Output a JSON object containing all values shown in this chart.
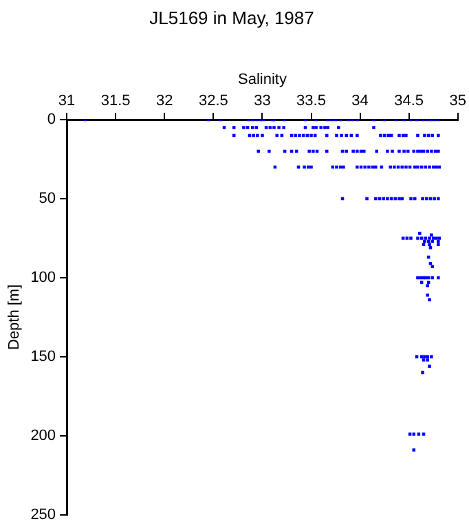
{
  "chart_data": {
    "type": "scatter",
    "title": "JL5169 in May, 1987",
    "xlabel": "Salinity",
    "ylabel": "Depth [m]",
    "xlim": [
      31,
      35
    ],
    "xticks": [
      31,
      31.5,
      32,
      32.5,
      33,
      33.5,
      34,
      34.5,
      35
    ],
    "ylim": [
      250,
      0
    ],
    "yticks": [
      0,
      50,
      100,
      150,
      200,
      250
    ],
    "grid": false,
    "legend": false,
    "marker": "square",
    "series": [
      {
        "color": "#0000ff",
        "x": [
          31.19,
          32.45,
          32.57,
          32.86,
          32.9,
          32.94,
          32.98,
          33.01,
          33.1,
          33.12,
          33.22,
          33.44,
          33.55,
          33.67,
          33.71,
          33.75,
          33.8,
          33.88,
          33.92,
          33.97,
          34.14,
          34.25,
          34.37,
          34.45,
          34.52,
          34.58,
          34.64,
          34.68,
          34.72,
          34.76,
          34.8,
          32.61,
          32.71,
          32.81,
          32.85,
          32.9,
          32.94,
          33.04,
          33.08,
          33.12,
          33.17,
          33.22,
          33.44,
          33.52,
          33.55,
          33.6,
          33.64,
          33.67,
          33.78,
          34.14,
          32.71,
          32.87,
          32.91,
          32.95,
          33.0,
          33.15,
          33.2,
          33.3,
          33.34,
          33.38,
          33.42,
          33.46,
          33.5,
          33.54,
          33.66,
          33.76,
          33.81,
          33.86,
          33.91,
          33.97,
          34.21,
          34.25,
          34.29,
          34.32,
          34.4,
          34.44,
          34.47,
          34.59,
          34.66,
          34.7,
          34.74,
          34.8,
          32.96,
          33.07,
          33.23,
          33.3,
          33.35,
          33.48,
          33.52,
          33.56,
          33.66,
          33.82,
          33.86,
          33.93,
          33.97,
          34.01,
          34.04,
          34.17,
          34.28,
          34.33,
          34.4,
          34.45,
          34.49,
          34.55,
          34.59,
          34.62,
          34.65,
          34.69,
          34.73,
          34.77,
          34.8,
          33.13,
          33.37,
          33.43,
          33.47,
          33.5,
          33.72,
          33.76,
          33.8,
          33.83,
          33.97,
          34.01,
          34.05,
          34.09,
          34.13,
          34.16,
          34.22,
          34.31,
          34.35,
          34.39,
          34.43,
          34.47,
          34.51,
          34.56,
          34.59,
          34.63,
          34.67,
          34.71,
          34.75,
          34.78,
          34.81,
          33.82,
          34.07,
          34.16,
          34.2,
          34.24,
          34.28,
          34.32,
          34.36,
          34.4,
          34.43,
          34.52,
          34.56,
          34.64,
          34.68,
          34.72,
          34.76,
          34.8,
          34.61,
          34.73,
          34.44,
          34.48,
          34.52,
          34.59,
          34.63,
          34.67,
          34.71,
          34.75,
          34.78,
          34.81,
          34.66,
          34.7,
          34.74,
          34.8,
          34.65,
          34.71,
          34.8,
          34.72,
          34.7,
          34.72,
          34.74,
          34.59,
          34.62,
          34.65,
          34.67,
          34.7,
          34.74,
          34.8,
          34.63,
          34.7,
          34.69,
          34.69,
          34.71,
          34.58,
          34.63,
          34.66,
          34.69,
          34.73,
          34.65,
          34.69,
          34.71,
          34.64,
          34.51,
          34.55,
          34.6,
          34.65,
          34.55
        ],
        "values": [
          0,
          0,
          0,
          0,
          0,
          0,
          0,
          0,
          0,
          0,
          0,
          0,
          0,
          0,
          0,
          0,
          0,
          0,
          0,
          0,
          0,
          0,
          0,
          0,
          0,
          0,
          0,
          0,
          0,
          0,
          0,
          5,
          5,
          5,
          5,
          5,
          5,
          5,
          5,
          5,
          5,
          5,
          5,
          5,
          5,
          5,
          5,
          5,
          5,
          5,
          10,
          10,
          10,
          10,
          10,
          10,
          10,
          10,
          10,
          10,
          10,
          10,
          10,
          10,
          10,
          10,
          10,
          10,
          10,
          10,
          10,
          10,
          10,
          10,
          10,
          10,
          10,
          10,
          10,
          10,
          10,
          10,
          20,
          20,
          20,
          20,
          20,
          20,
          20,
          20,
          20,
          20,
          20,
          20,
          20,
          20,
          20,
          20,
          20,
          20,
          20,
          20,
          20,
          20,
          20,
          20,
          20,
          20,
          20,
          20,
          20,
          30,
          30,
          30,
          30,
          30,
          30,
          30,
          30,
          30,
          30,
          30,
          30,
          30,
          30,
          30,
          30,
          30,
          30,
          30,
          30,
          30,
          30,
          30,
          30,
          30,
          30,
          30,
          30,
          30,
          30,
          50,
          50,
          50,
          50,
          50,
          50,
          50,
          50,
          50,
          50,
          50,
          50,
          50,
          50,
          50,
          50,
          50,
          72,
          73,
          75,
          75,
          75,
          75,
          75,
          75,
          75,
          75,
          75,
          75,
          77,
          77,
          77,
          77,
          79,
          79,
          79,
          81,
          87,
          91,
          93,
          100,
          100,
          100,
          100,
          100,
          100,
          100,
          103,
          103,
          105,
          111,
          114,
          150,
          150,
          150,
          150,
          150,
          152,
          152,
          156,
          160,
          199,
          199,
          199,
          199,
          209
        ]
      }
    ]
  }
}
